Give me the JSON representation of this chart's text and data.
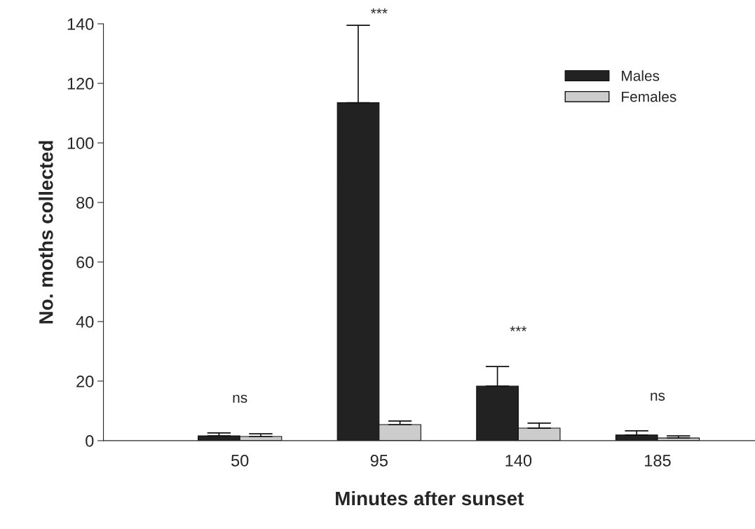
{
  "chart_data": {
    "type": "bar",
    "xlabel": "Minutes after sunset",
    "ylabel": "No. moths collected",
    "categories": [
      "50",
      "95",
      "140",
      "185"
    ],
    "series": [
      {
        "name": "Males",
        "color": "#222222",
        "values": [
          1.6,
          113.5,
          18.3,
          1.9
        ],
        "errors": [
          1.0,
          26,
          6.6,
          1.4
        ]
      },
      {
        "name": "Females",
        "color": "#cccccc",
        "values": [
          1.4,
          5.4,
          4.2,
          0.9
        ],
        "errors": [
          0.9,
          1.2,
          1.7,
          0.7
        ]
      }
    ],
    "ylim": [
      0,
      140
    ],
    "yticks": [
      0,
      20,
      40,
      60,
      80,
      100,
      120,
      140
    ],
    "annotations": [
      "ns",
      "***",
      "***",
      "ns"
    ],
    "grid": false,
    "legend": "top right"
  }
}
